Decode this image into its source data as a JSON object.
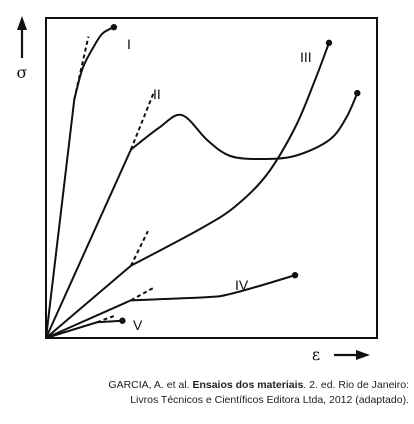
{
  "chart_data": {
    "type": "line",
    "ylabel": "σ",
    "xlabel": "ε",
    "grid": false,
    "series": [
      {
        "name": "I",
        "x": [
          0,
          0.1,
          0.13,
          0.17,
          0.2,
          0.24
        ],
        "y": [
          0,
          0.76,
          0.86,
          0.93,
          0.97,
          0.99
        ]
      },
      {
        "name": "II",
        "x": [
          0,
          0.3,
          0.4,
          0.48,
          0.57,
          0.65,
          0.76,
          0.88,
          1.0,
          1.06,
          1.1
        ],
        "y": [
          0,
          0.6,
          0.67,
          0.71,
          0.63,
          0.58,
          0.57,
          0.58,
          0.63,
          0.7,
          0.78
        ]
      },
      {
        "name": "III",
        "x": [
          0,
          0.3,
          0.55,
          0.67,
          0.78,
          0.88,
          0.95,
          1.0
        ],
        "y": [
          0,
          0.23,
          0.35,
          0.42,
          0.52,
          0.67,
          0.82,
          0.94
        ]
      },
      {
        "name": "IV",
        "x": [
          0,
          0.3,
          0.57,
          0.65,
          0.77,
          0.88
        ],
        "y": [
          0,
          0.12,
          0.13,
          0.14,
          0.17,
          0.2
        ]
      },
      {
        "name": "V",
        "x": [
          0,
          0.18,
          0.27
        ],
        "y": [
          0,
          0.05,
          0.055
        ]
      }
    ],
    "elastic_extensions": [
      {
        "series": "I",
        "x": [
          0.1,
          0.15
        ],
        "y": [
          0.76,
          0.96
        ]
      },
      {
        "series": "II",
        "x": [
          0.3,
          0.38
        ],
        "y": [
          0.6,
          0.78
        ]
      },
      {
        "series": "III",
        "x": [
          0.3,
          0.36
        ],
        "y": [
          0.23,
          0.34
        ]
      },
      {
        "series": "IV",
        "x": [
          0.3,
          0.38
        ],
        "y": [
          0.12,
          0.16
        ]
      },
      {
        "series": "V",
        "x": [
          0.18,
          0.24
        ],
        "y": [
          0.05,
          0.07
        ]
      }
    ],
    "curve_labels": [
      "I",
      "II",
      "III",
      "IV",
      "V"
    ]
  },
  "caption": {
    "line1_prefix": "GARCIA, A. et al. ",
    "line1_bold": "Ensaios dos materiais",
    "line1_suffix": ". 2. ed. Rio de Janeiro:",
    "line2": "Livros Técnicos e Científicos Editora Ltda, 2012 (adaptado)."
  }
}
